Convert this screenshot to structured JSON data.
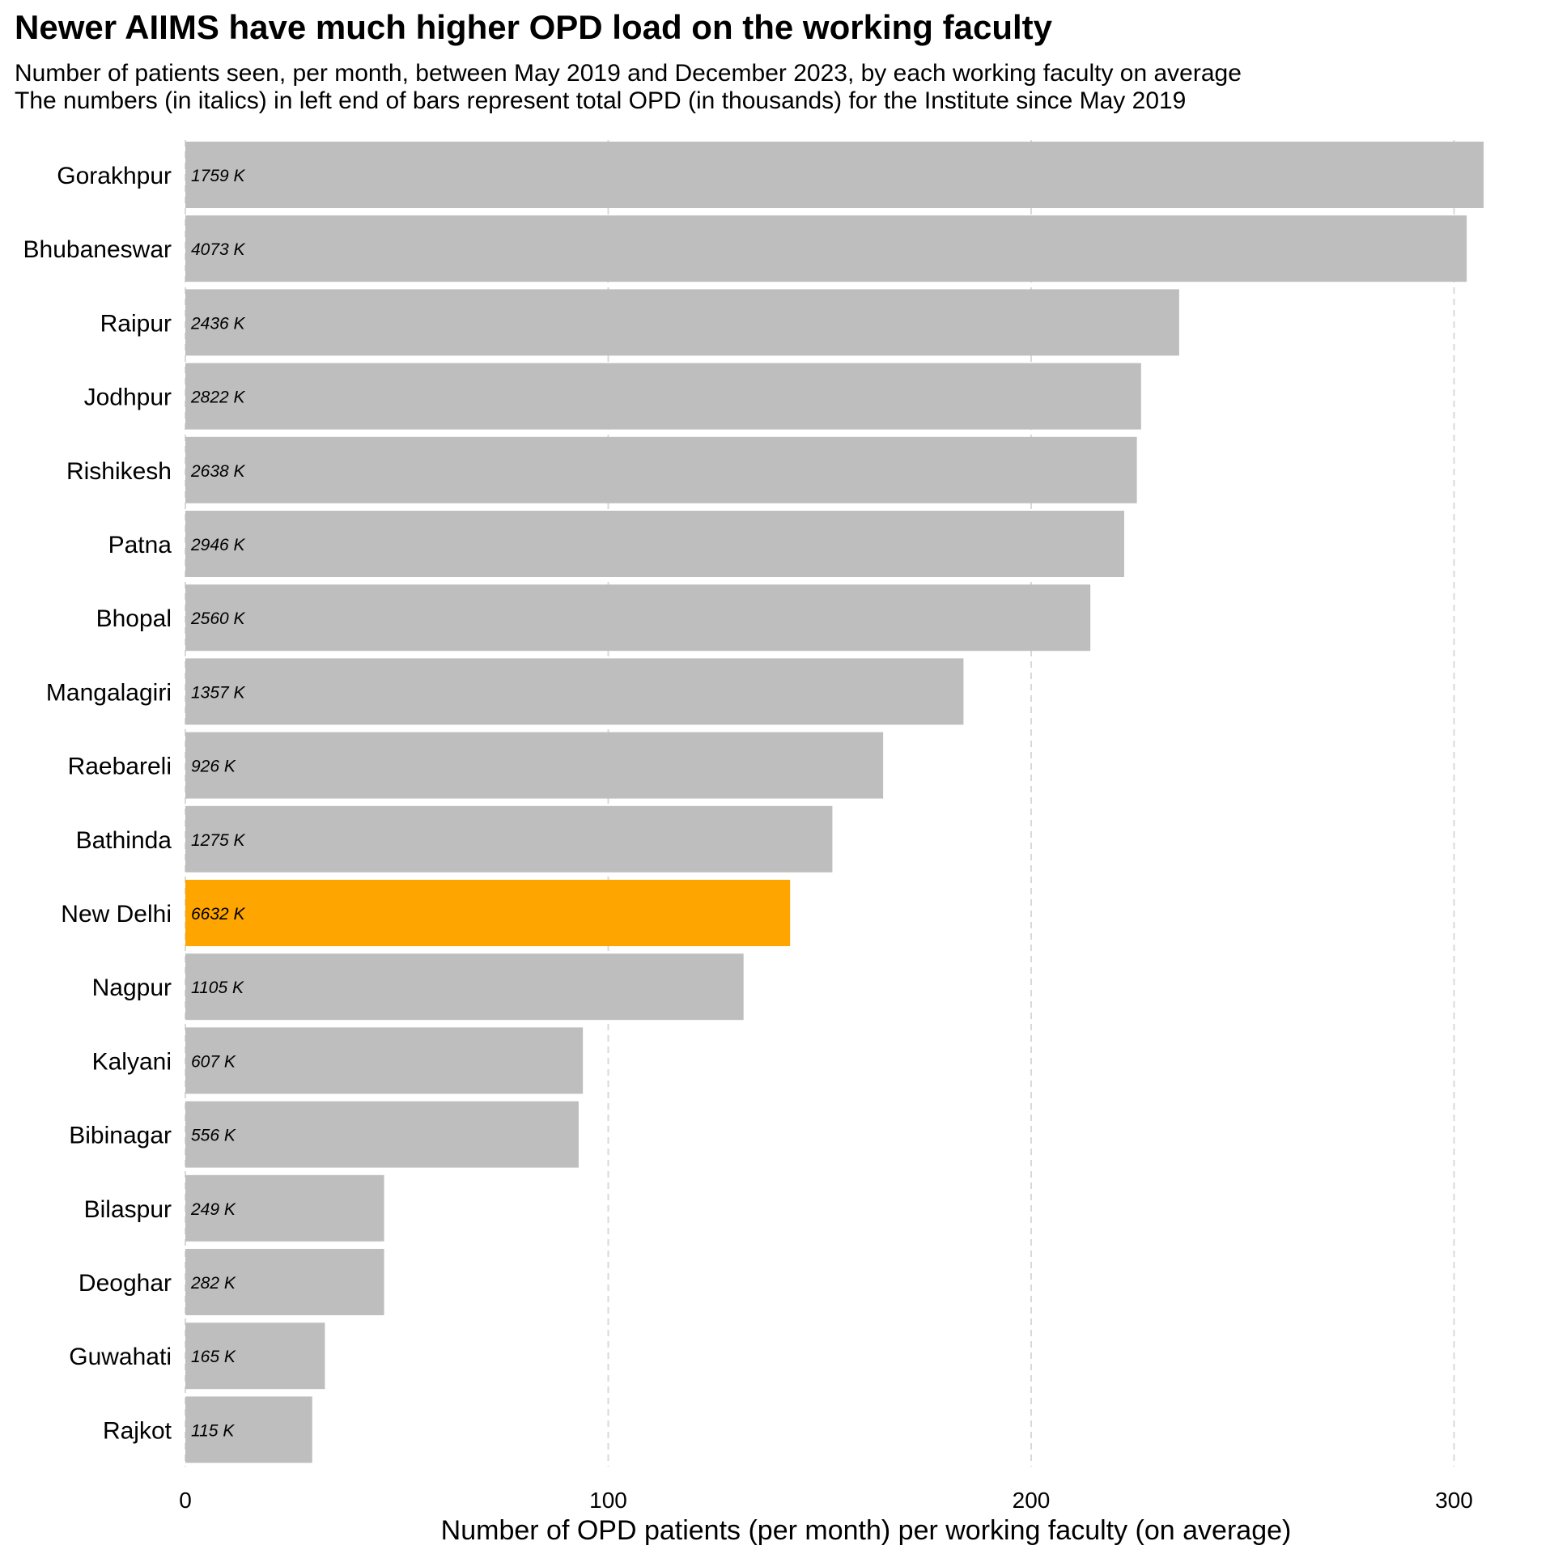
{
  "chart_data": {
    "type": "bar",
    "orientation": "horizontal",
    "title": "Newer AIIMS have much higher OPD load on the working faculty",
    "subtitle": [
      "Number of patients seen, per month, between May 2019 and December 2023, by each working faculty on average",
      "The numbers (in italics) in left end of bars represent total OPD (in thousands) for the Institute since May 2019"
    ],
    "xlabel": "Number of OPD patients (per month) per working faculty (on average)",
    "ylabel": "",
    "xlim": [
      0,
      310
    ],
    "xticks": [
      0,
      100,
      200,
      300
    ],
    "grid": "vertical dashed",
    "categories": [
      "Gorakhpur",
      "Bhubaneswar",
      "Raipur",
      "Jodhpur",
      "Rishikesh",
      "Patna",
      "Bhopal",
      "Mangalagiri",
      "Raebareli",
      "Bathinda",
      "New Delhi",
      "Nagpur",
      "Kalyani",
      "Bibinagar",
      "Bilaspur",
      "Deoghar",
      "Guwahati",
      "Rajkot"
    ],
    "values": [
      307,
      303,
      235,
      226,
      225,
      222,
      214,
      184,
      165,
      153,
      143,
      132,
      94,
      93,
      47,
      47,
      33,
      30
    ],
    "bar_labels": [
      "1759 K",
      "4073 K",
      "2436 K",
      "2822 K",
      "2638 K",
      "2946 K",
      "2560 K",
      "1357 K",
      "926 K",
      "1275 K",
      "6632 K",
      "1105 K",
      "607 K",
      "556 K",
      "249 K",
      "282 K",
      "165 K",
      "115 K"
    ],
    "highlight": "New Delhi",
    "colors": {
      "default": "#bebebe",
      "highlight": "#ffa500",
      "grid": "#d9d9d9"
    }
  }
}
